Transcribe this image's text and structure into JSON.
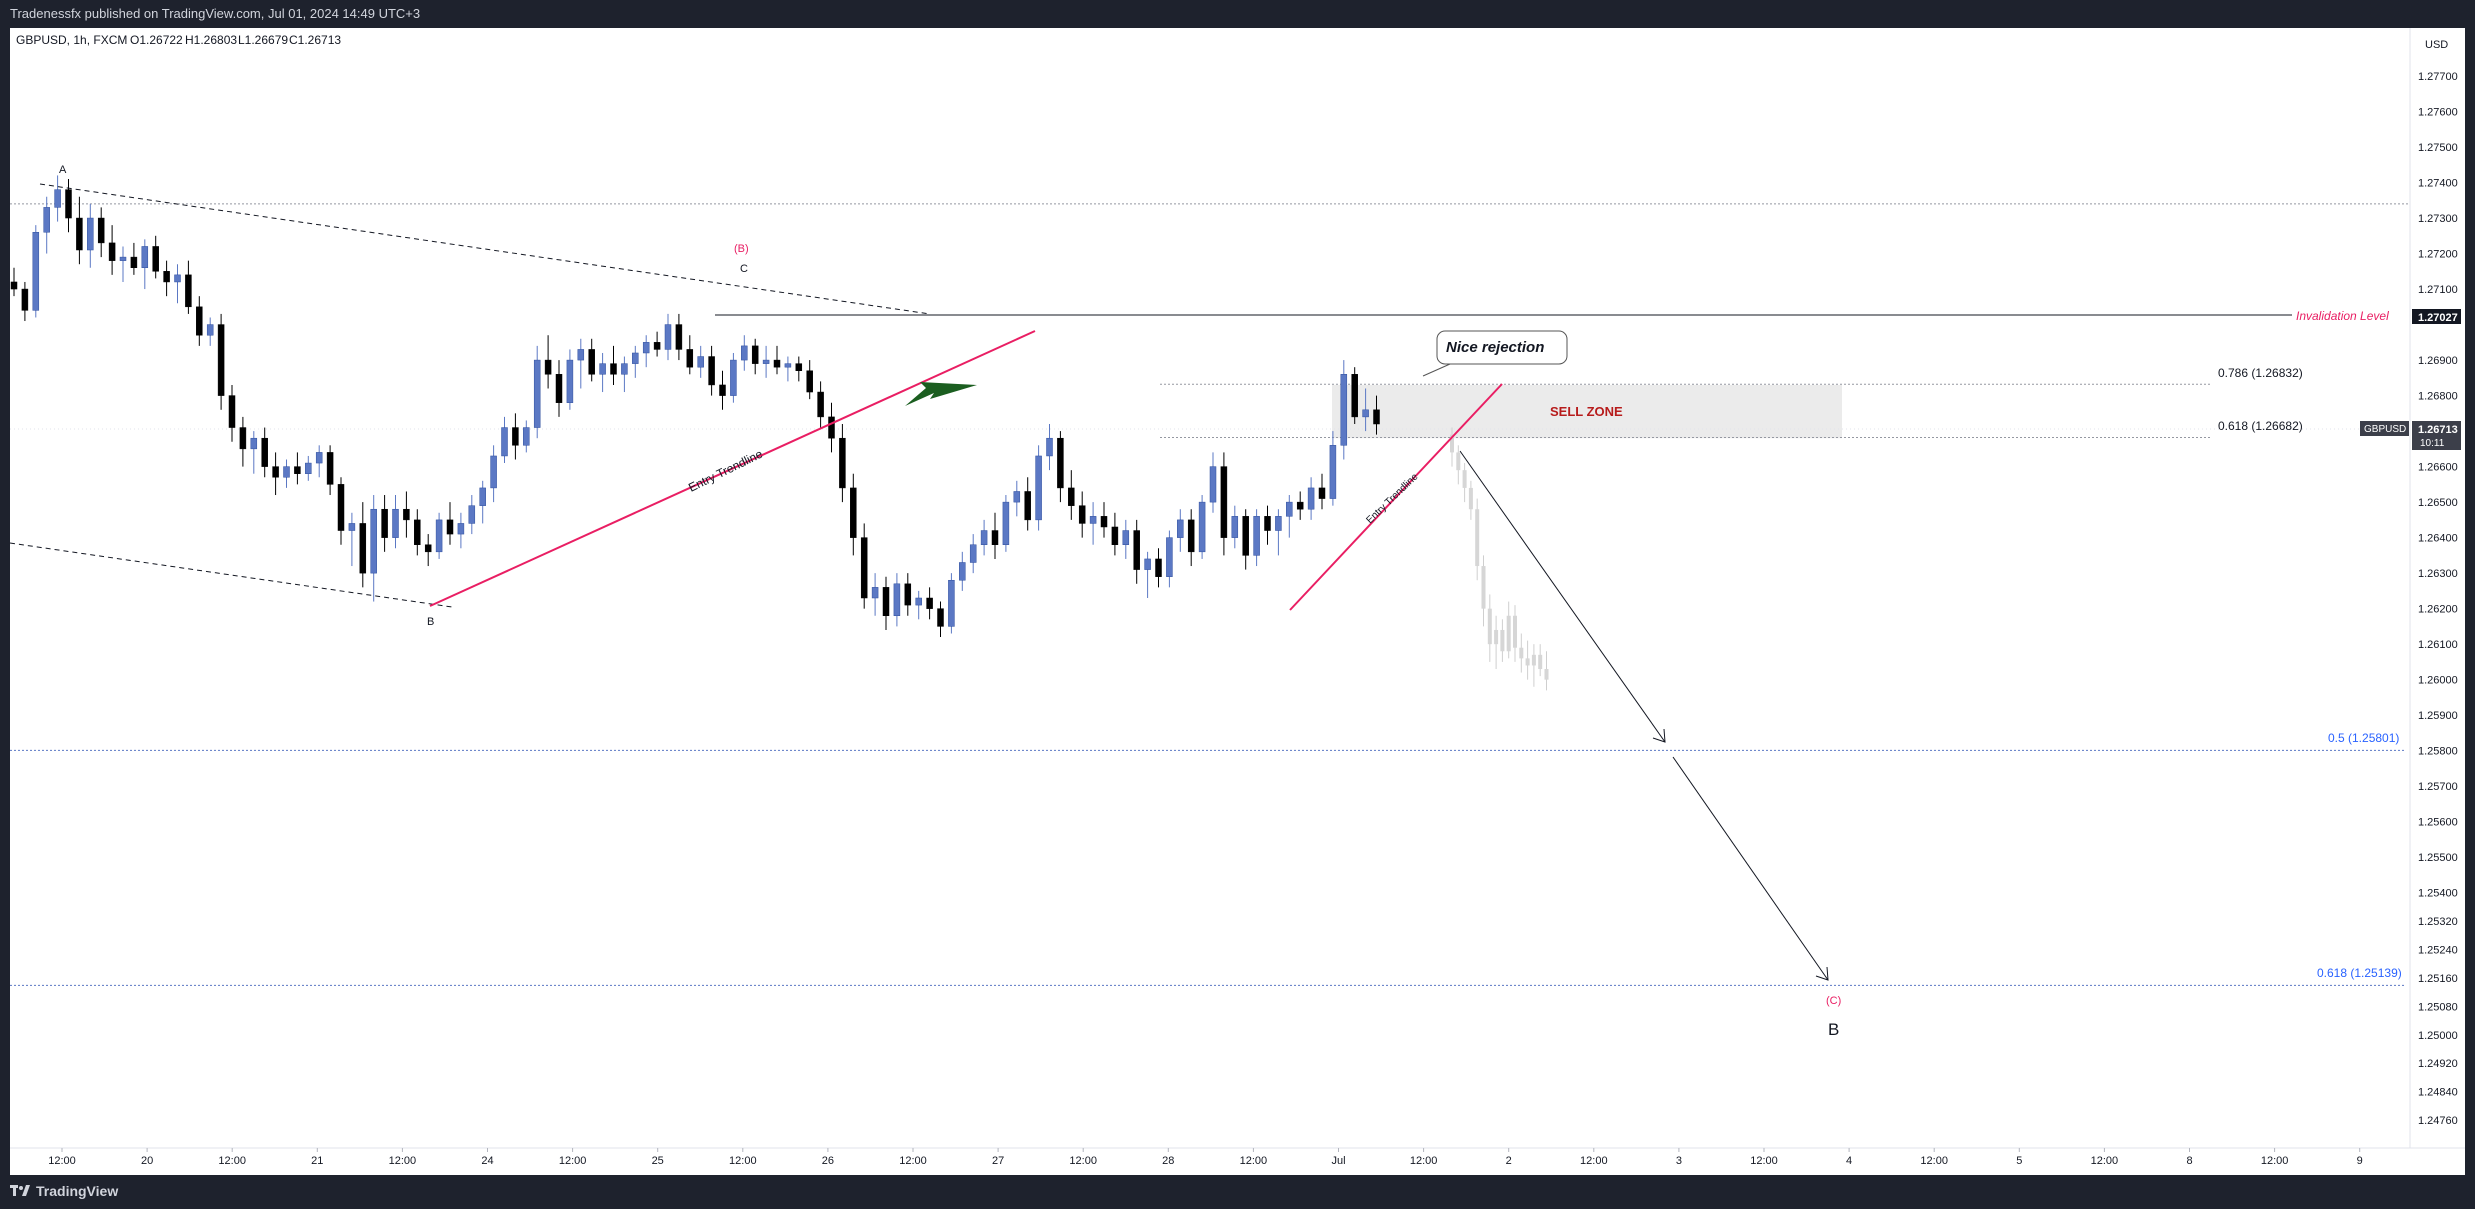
{
  "header": {
    "publisher": "Tradenessfx published on TradingView.com, Jul 01, 2024 14:49 UTC+3"
  },
  "footer": {
    "brand": "TradingView"
  },
  "chart_data": {
    "type": "candlestick",
    "title": "GBPUSD, 1h, FXCM",
    "ohlc": {
      "o": "O1.26722",
      "h": "H1.26803",
      "l": "L1.26679",
      "c": "C1.26713"
    },
    "currency": "USD",
    "symbol": "GBPUSD",
    "last_price": "1.26713",
    "countdown": "10:11",
    "y_ticks": [
      "1.27700",
      "1.27600",
      "1.27500",
      "1.27400",
      "1.27300",
      "1.27200",
      "1.27100",
      "1.26900",
      "1.26800",
      "1.26600",
      "1.26500",
      "1.26400",
      "1.26300",
      "1.26200",
      "1.26100",
      "1.26000",
      "1.25900",
      "1.25800",
      "1.25700",
      "1.25600",
      "1.25500",
      "1.25400",
      "1.25320",
      "1.25240",
      "1.25160",
      "1.25080",
      "1.25000",
      "1.24920",
      "1.24840",
      "1.24760"
    ],
    "x_ticks": [
      "12:00",
      "20",
      "12:00",
      "21",
      "12:00",
      "24",
      "12:00",
      "25",
      "12:00",
      "26",
      "12:00",
      "27",
      "12:00",
      "28",
      "12:00",
      "Jul",
      "12:00",
      "2",
      "12:00",
      "3",
      "12:00",
      "4",
      "12:00",
      "5",
      "12:00",
      "8",
      "12:00",
      "9"
    ],
    "levels": {
      "invalidation": {
        "label": "Invalidation Level",
        "value": 1.27027,
        "value_label": "1.27027"
      },
      "fib_786": {
        "label": "0.786 (1.26832)",
        "value": 1.26832
      },
      "fib_618": {
        "label": "0.618 (1.26682)",
        "value": 1.26682
      },
      "fib_5": {
        "label": "0.5 (1.25801)",
        "value": 1.25801
      },
      "fib_618_low": {
        "label": "0.618 (1.25139)",
        "value": 1.25139
      },
      "top_dotted": {
        "value": 1.2734
      }
    },
    "zones": {
      "sell_zone": {
        "label": "SELL ZONE",
        "low": 1.2668,
        "high": 1.2683
      }
    },
    "annotations": {
      "a": "A",
      "b_low": "B",
      "wave_b": "(B)",
      "c": "C",
      "wave_c": "(C)",
      "b_big": "B",
      "nice_rejection": "Nice rejection",
      "entry_trendline_1": "Entry Trendline",
      "entry_trendline_2": "Entry Trendline"
    },
    "colors": {
      "bull": "#5b78c4",
      "bear": "#000000",
      "trendline": "#e91e63",
      "invalidation": "#e91e63",
      "fib": "#2962ff",
      "sell_zone_bg": "#ebebeb",
      "sell_zone_text": "#b71c1c",
      "arrow": "#1b5e20"
    },
    "candles": [
      [
        1.2712,
        1.2716,
        1.2708,
        1.271
      ],
      [
        1.271,
        1.2712,
        1.2701,
        1.2704
      ],
      [
        1.2704,
        1.2728,
        1.2702,
        1.2726
      ],
      [
        1.2726,
        1.2736,
        1.272,
        1.2733
      ],
      [
        1.2733,
        1.2742,
        1.2729,
        1.2738
      ],
      [
        1.2738,
        1.2741,
        1.2726,
        1.273
      ],
      [
        1.273,
        1.2736,
        1.2717,
        1.2721
      ],
      [
        1.2721,
        1.2734,
        1.2716,
        1.273
      ],
      [
        1.273,
        1.2733,
        1.2719,
        1.2723
      ],
      [
        1.2723,
        1.2728,
        1.2714,
        1.2718
      ],
      [
        1.2718,
        1.2722,
        1.2712,
        1.2719
      ],
      [
        1.2719,
        1.2723,
        1.2714,
        1.2716
      ],
      [
        1.2716,
        1.2724,
        1.271,
        1.2722
      ],
      [
        1.2722,
        1.2725,
        1.2713,
        1.2715
      ],
      [
        1.2715,
        1.2718,
        1.2708,
        1.2712
      ],
      [
        1.2712,
        1.2717,
        1.2706,
        1.2714
      ],
      [
        1.2714,
        1.2718,
        1.2703,
        1.2705
      ],
      [
        1.2705,
        1.2708,
        1.2694,
        1.2697
      ],
      [
        1.2697,
        1.2702,
        1.2694,
        1.27
      ],
      [
        1.27,
        1.2703,
        1.2676,
        1.268
      ],
      [
        1.268,
        1.2683,
        1.2667,
        1.2671
      ],
      [
        1.2671,
        1.2674,
        1.266,
        1.2665
      ],
      [
        1.2665,
        1.267,
        1.2658,
        1.2668
      ],
      [
        1.2668,
        1.2671,
        1.2657,
        1.266
      ],
      [
        1.266,
        1.2664,
        1.2652,
        1.2657
      ],
      [
        1.2657,
        1.2662,
        1.2654,
        1.266
      ],
      [
        1.266,
        1.2664,
        1.2655,
        1.2658
      ],
      [
        1.2658,
        1.2663,
        1.2656,
        1.2661
      ],
      [
        1.2661,
        1.2666,
        1.2657,
        1.2664
      ],
      [
        1.2664,
        1.2666,
        1.2652,
        1.2655
      ],
      [
        1.2655,
        1.2657,
        1.2638,
        1.2642
      ],
      [
        1.2642,
        1.2647,
        1.2632,
        1.2644
      ],
      [
        1.2644,
        1.265,
        1.2626,
        1.263
      ],
      [
        1.263,
        1.2652,
        1.2622,
        1.2648
      ],
      [
        1.2648,
        1.2652,
        1.2636,
        1.264
      ],
      [
        1.264,
        1.2652,
        1.2637,
        1.2648
      ],
      [
        1.2648,
        1.2653,
        1.264,
        1.2645
      ],
      [
        1.2645,
        1.2648,
        1.2635,
        1.2638
      ],
      [
        1.2638,
        1.2641,
        1.2632,
        1.2636
      ],
      [
        1.2636,
        1.2647,
        1.2634,
        1.2645
      ],
      [
        1.2645,
        1.265,
        1.2638,
        1.2641
      ],
      [
        1.2641,
        1.2647,
        1.2637,
        1.2644
      ],
      [
        1.2644,
        1.2652,
        1.2641,
        1.2649
      ],
      [
        1.2649,
        1.2656,
        1.2644,
        1.2654
      ],
      [
        1.2654,
        1.2666,
        1.265,
        1.2663
      ],
      [
        1.2663,
        1.2674,
        1.2661,
        1.2671
      ],
      [
        1.2671,
        1.2675,
        1.2662,
        1.2666
      ],
      [
        1.2666,
        1.2673,
        1.2664,
        1.2671
      ],
      [
        1.2671,
        1.2694,
        1.2668,
        1.269
      ],
      [
        1.269,
        1.2697,
        1.2682,
        1.2686
      ],
      [
        1.2686,
        1.269,
        1.2674,
        1.2678
      ],
      [
        1.2678,
        1.2693,
        1.2676,
        1.269
      ],
      [
        1.269,
        1.2696,
        1.2682,
        1.2693
      ],
      [
        1.2693,
        1.2696,
        1.2684,
        1.2686
      ],
      [
        1.2686,
        1.2692,
        1.2681,
        1.2689
      ],
      [
        1.2689,
        1.2694,
        1.2683,
        1.2686
      ],
      [
        1.2686,
        1.2691,
        1.2681,
        1.2689
      ],
      [
        1.2689,
        1.2694,
        1.2685,
        1.2692
      ],
      [
        1.2692,
        1.2697,
        1.2688,
        1.2695
      ],
      [
        1.2695,
        1.2698,
        1.2691,
        1.2693
      ],
      [
        1.2693,
        1.2703,
        1.269,
        1.27
      ],
      [
        1.27,
        1.2703,
        1.269,
        1.2693
      ],
      [
        1.2693,
        1.2697,
        1.2686,
        1.2688
      ],
      [
        1.2688,
        1.2694,
        1.2685,
        1.2691
      ],
      [
        1.2691,
        1.2694,
        1.268,
        1.2683
      ],
      [
        1.2683,
        1.2687,
        1.2676,
        1.268
      ],
      [
        1.268,
        1.2692,
        1.2678,
        1.269
      ],
      [
        1.269,
        1.2697,
        1.2687,
        1.2694
      ],
      [
        1.2694,
        1.2696,
        1.2686,
        1.2689
      ],
      [
        1.2689,
        1.2694,
        1.2685,
        1.269
      ],
      [
        1.269,
        1.2694,
        1.2686,
        1.2688
      ],
      [
        1.2688,
        1.2691,
        1.2684,
        1.2689
      ],
      [
        1.2689,
        1.2691,
        1.2684,
        1.2687
      ],
      [
        1.2687,
        1.269,
        1.2679,
        1.2681
      ],
      [
        1.2681,
        1.2684,
        1.2671,
        1.2674
      ],
      [
        1.2674,
        1.2678,
        1.2664,
        1.2668
      ],
      [
        1.2668,
        1.2672,
        1.265,
        1.2654
      ],
      [
        1.2654,
        1.2658,
        1.2635,
        1.264
      ],
      [
        1.264,
        1.2644,
        1.262,
        1.2623
      ],
      [
        1.2623,
        1.263,
        1.2618,
        1.2626
      ],
      [
        1.2626,
        1.2629,
        1.2614,
        1.2618
      ],
      [
        1.2618,
        1.263,
        1.2615,
        1.2627
      ],
      [
        1.2627,
        1.263,
        1.2618,
        1.2621
      ],
      [
        1.2621,
        1.2625,
        1.2617,
        1.2623
      ],
      [
        1.2623,
        1.2626,
        1.2617,
        1.262
      ],
      [
        1.262,
        1.2622,
        1.2612,
        1.2615
      ],
      [
        1.2615,
        1.263,
        1.2613,
        1.2628
      ],
      [
        1.2628,
        1.2636,
        1.2625,
        1.2633
      ],
      [
        1.2633,
        1.2641,
        1.263,
        1.2638
      ],
      [
        1.2638,
        1.2645,
        1.2635,
        1.2642
      ],
      [
        1.2642,
        1.2647,
        1.2634,
        1.2638
      ],
      [
        1.2638,
        1.2652,
        1.2636,
        1.265
      ],
      [
        1.265,
        1.2656,
        1.2646,
        1.2653
      ],
      [
        1.2653,
        1.2657,
        1.2642,
        1.2645
      ],
      [
        1.2645,
        1.2666,
        1.2642,
        1.2663
      ],
      [
        1.2663,
        1.2672,
        1.2659,
        1.2668
      ],
      [
        1.2668,
        1.267,
        1.265,
        1.2654
      ],
      [
        1.2654,
        1.2659,
        1.2645,
        1.2649
      ],
      [
        1.2649,
        1.2653,
        1.264,
        1.2644
      ],
      [
        1.2644,
        1.265,
        1.2638,
        1.2646
      ],
      [
        1.2646,
        1.265,
        1.264,
        1.2643
      ],
      [
        1.2643,
        1.2647,
        1.2635,
        1.2638
      ],
      [
        1.2638,
        1.2645,
        1.2634,
        1.2642
      ],
      [
        1.2642,
        1.2645,
        1.2627,
        1.2631
      ],
      [
        1.2631,
        1.2636,
        1.2623,
        1.2634
      ],
      [
        1.2634,
        1.2637,
        1.2626,
        1.2629
      ],
      [
        1.2629,
        1.2642,
        1.2626,
        1.264
      ],
      [
        1.264,
        1.2648,
        1.2636,
        1.2645
      ],
      [
        1.2645,
        1.2648,
        1.2632,
        1.2636
      ],
      [
        1.2636,
        1.2652,
        1.2634,
        1.265
      ],
      [
        1.265,
        1.2664,
        1.2647,
        1.266
      ],
      [
        1.266,
        1.2664,
        1.2635,
        1.264
      ],
      [
        1.264,
        1.2649,
        1.2637,
        1.2646
      ],
      [
        1.2646,
        1.2648,
        1.2631,
        1.2635
      ],
      [
        1.2635,
        1.2648,
        1.2632,
        1.2646
      ],
      [
        1.2646,
        1.2649,
        1.2638,
        1.2642
      ],
      [
        1.2642,
        1.2648,
        1.2635,
        1.2646
      ],
      [
        1.2646,
        1.2652,
        1.264,
        1.265
      ],
      [
        1.265,
        1.2653,
        1.2645,
        1.2648
      ],
      [
        1.2648,
        1.2657,
        1.2645,
        1.2654
      ],
      [
        1.2654,
        1.2658,
        1.2648,
        1.2651
      ],
      [
        1.2651,
        1.267,
        1.2649,
        1.2666
      ],
      [
        1.2666,
        1.269,
        1.2662,
        1.2686
      ],
      [
        1.2686,
        1.2688,
        1.2672,
        1.2674
      ],
      [
        1.2674,
        1.2682,
        1.267,
        1.2676
      ],
      [
        1.2676,
        1.268,
        1.2669,
        1.2672
      ]
    ],
    "projection_candles": [
      [
        1.2669,
        1.2671,
        1.266,
        1.2664
      ],
      [
        1.2664,
        1.2666,
        1.2655,
        1.2659
      ],
      [
        1.2659,
        1.2661,
        1.265,
        1.2654
      ],
      [
        1.2654,
        1.2656,
        1.2645,
        1.2648
      ],
      [
        1.2648,
        1.2651,
        1.2628,
        1.2632
      ],
      [
        1.2632,
        1.2635,
        1.2615,
        1.262
      ],
      [
        1.262,
        1.2624,
        1.2605,
        1.261
      ],
      [
        1.261,
        1.2618,
        1.2603,
        1.2614
      ],
      [
        1.2614,
        1.2617,
        1.2605,
        1.2608
      ],
      [
        1.2608,
        1.2622,
        1.2606,
        1.2618
      ],
      [
        1.2618,
        1.2621,
        1.2605,
        1.2609
      ],
      [
        1.2609,
        1.2613,
        1.2602,
        1.2606
      ],
      [
        1.2606,
        1.2611,
        1.26,
        1.2604
      ],
      [
        1.2604,
        1.261,
        1.2598,
        1.2607
      ],
      [
        1.2607,
        1.261,
        1.2601,
        1.2603
      ],
      [
        1.2603,
        1.2608,
        1.2597,
        1.26
      ]
    ]
  }
}
